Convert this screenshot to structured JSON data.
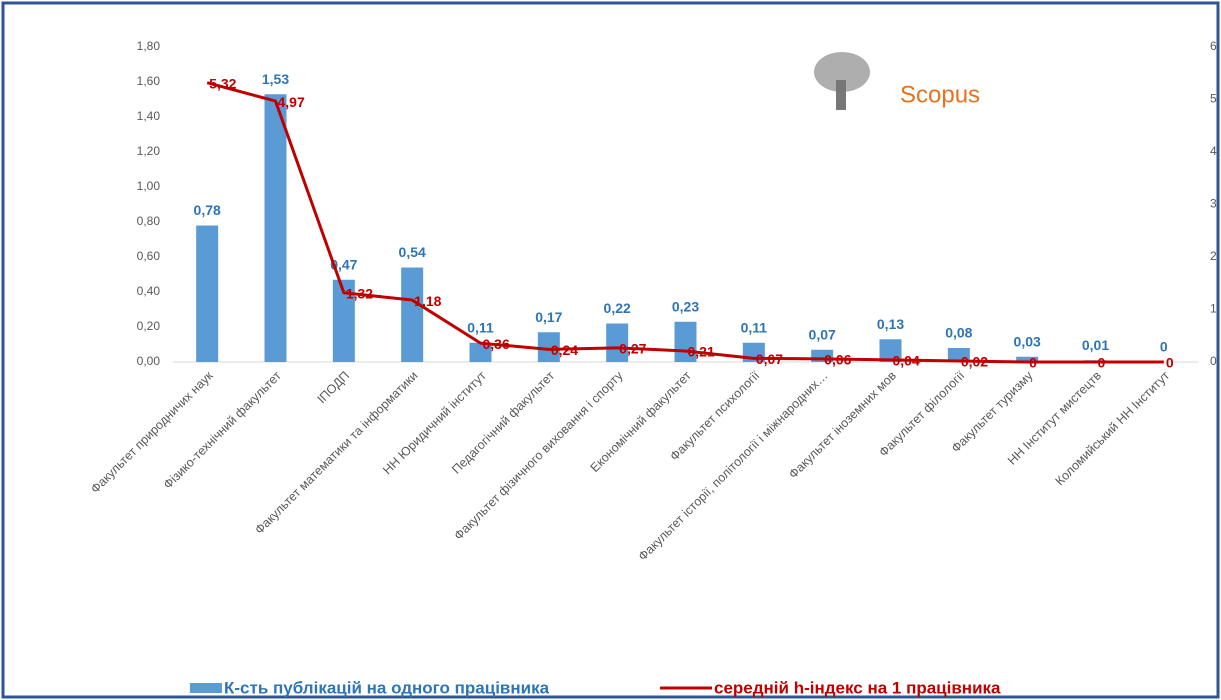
{
  "chart_data": {
    "type": "bar-line",
    "logo_text": "Scopus",
    "categories": [
      "Факультет природничих наук",
      "Фізико-технічний факультет",
      "ІПОДП",
      "Факультет математики та інформатики",
      "НН Юридичний інститут",
      "Педагогічний факультет",
      "Факультет фізичного виховання і спорту",
      "Економічний факультет",
      "Факультет психології",
      "Факультет історії, політології і міжнародних…",
      "Факультет іноземних мов",
      "Факультет філології",
      "Факультет туризму",
      "НН Інститут мистецтв",
      "Коломийський НН Інститут"
    ],
    "series": [
      {
        "name": "К-сть публікацій на одного працівника",
        "type": "bar",
        "color": "#5b9bd5",
        "label_color": "#2e75b6",
        "values": [
          0.78,
          1.53,
          0.47,
          0.54,
          0.11,
          0.17,
          0.22,
          0.23,
          0.11,
          0.07,
          0.13,
          0.08,
          0.03,
          0.01,
          0
        ],
        "value_labels": [
          "0,78",
          "1,53",
          "0,47",
          "0,54",
          "0,11",
          "0,17",
          "0,22",
          "0,23",
          "0,11",
          "0,07",
          "0,13",
          "0,08",
          "0,03",
          "0,01",
          "0"
        ]
      },
      {
        "name": "середній h-індекс на 1 працівника",
        "type": "line",
        "axis": "y2",
        "color": "#c00000",
        "label_color": "#c00000",
        "values": [
          5.32,
          4.97,
          1.32,
          1.18,
          0.36,
          0.24,
          0.27,
          0.21,
          0.07,
          0.06,
          0.04,
          0.02,
          0,
          0,
          0
        ],
        "value_labels": [
          "5,32",
          "4,97",
          "1,32",
          "1,18",
          "0,36",
          "0,24",
          "0,27",
          "0,21",
          "0,07",
          "0,06",
          "0,04",
          "0,02",
          "0",
          "0",
          "0"
        ]
      }
    ],
    "ylim": [
      0,
      1.8
    ],
    "yticks": [
      {
        "value": 0,
        "label": "0,00"
      },
      {
        "value": 0.2,
        "label": "0,20"
      },
      {
        "value": 0.4,
        "label": "0,40"
      },
      {
        "value": 0.6,
        "label": "0,60"
      },
      {
        "value": 0.8,
        "label": "0,80"
      },
      {
        "value": 1,
        "label": "1,00"
      },
      {
        "value": 1.2,
        "label": "1,20"
      },
      {
        "value": 1.4,
        "label": "1,40"
      },
      {
        "value": 1.6,
        "label": "1,60"
      },
      {
        "value": 1.8,
        "label": "1,80"
      }
    ],
    "y2lim": [
      0,
      6
    ],
    "y2ticks": [
      0,
      1,
      2,
      3,
      4,
      5,
      6
    ],
    "legend": "bottom",
    "grid": false
  }
}
